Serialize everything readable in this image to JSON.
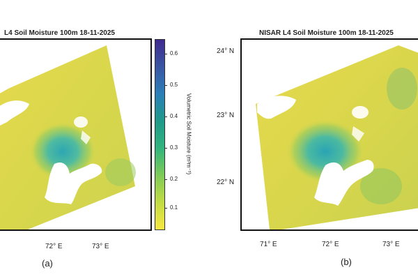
{
  "chart_data": [
    {
      "type": "heatmap",
      "title": "L4 Soil Moisture 100m 18-11-2025",
      "x_ticks": [
        "72° E",
        "73° E"
      ],
      "y_ticks": [],
      "panel_label": "(a)",
      "colorbar": {
        "label": "Volumetric Soil Moisture (m³m⁻³)",
        "ticks": [
          0.1,
          0.2,
          0.3,
          0.4,
          0.5,
          0.6
        ],
        "range": [
          0.05,
          0.65
        ],
        "colormap": [
          "#f7e842",
          "#c2dc44",
          "#7ecb58",
          "#32b57e",
          "#1f9a8a",
          "#2c7fb8",
          "#3a56a3",
          "#3f2a8f"
        ]
      }
    },
    {
      "type": "heatmap",
      "title": "NISAR L4 Soil Moisture 100m 18-11-2025",
      "x_ticks": [
        "71° E",
        "72° E",
        "73° E"
      ],
      "y_ticks": [
        "24° N",
        "23° N",
        "22° N"
      ],
      "panel_label": "(b)"
    }
  ],
  "colors": {
    "dry": "#e9d94a",
    "mid": "#b9d24c",
    "wet": "#2fa8b0",
    "water": "#ffffff",
    "frame": "#111111"
  }
}
